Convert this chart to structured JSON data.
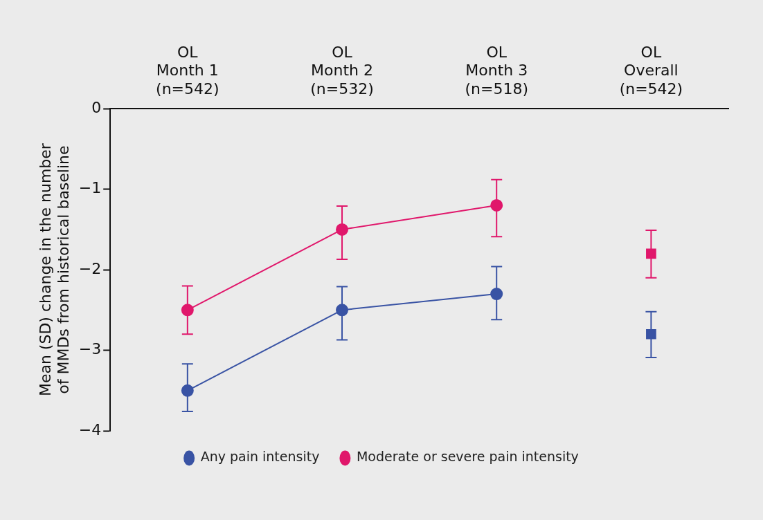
{
  "chart_data": {
    "type": "line",
    "categories": [
      "OL\nMonth 1\n(n=542)",
      "OL\nMonth 2\n(n=532)",
      "OL\nMonth 3\n(n=518)",
      "OL\nOverall\n(n=542)"
    ],
    "ylabel": "Mean (SD) change in the number\nof MMDs from historical baseline",
    "ylim": [
      -4,
      0
    ],
    "yticks": [
      -4,
      -3,
      -2,
      -1,
      0
    ],
    "grid": false,
    "legend": "bottom",
    "marker": "circle",
    "line_style": "solid",
    "series": [
      {
        "name": "Any pain intensity",
        "color": "#3953a4",
        "values": [
          -3.5,
          -2.5,
          -2.3,
          null
        ],
        "errors": [
          [
            -3.76,
            -3.17
          ],
          [
            -2.87,
            -2.21
          ],
          [
            -2.62,
            -1.96
          ],
          null
        ]
      },
      {
        "name": "Moderate or severe pain intensity",
        "color": "#e0176b",
        "values": [
          -2.5,
          -1.5,
          -1.2,
          null
        ],
        "errors": [
          [
            -2.8,
            -2.2
          ],
          [
            -1.87,
            -1.21
          ],
          [
            -1.59,
            -0.88
          ],
          null
        ]
      },
      {
        "type": "scatter",
        "marker": "square",
        "color": "#3953a4",
        "x": [
          "OL\nOverall\n(n=542)"
        ],
        "values": [
          -2.8
        ],
        "errors": [
          [
            -3.09,
            -2.52
          ]
        ]
      },
      {
        "type": "scatter",
        "marker": "square",
        "color": "#e0176b",
        "x": [
          "OL\nOverall\n(n=542)"
        ],
        "values": [
          -1.8
        ],
        "errors": [
          [
            -2.1,
            -1.51
          ]
        ]
      }
    ]
  }
}
